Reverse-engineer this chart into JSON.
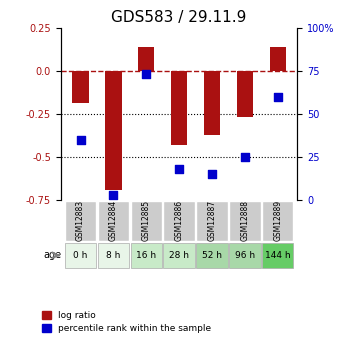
{
  "title": "GDS583 / 29.11.9",
  "samples": [
    "GSM12883",
    "GSM12884",
    "GSM12885",
    "GSM12886",
    "GSM12887",
    "GSM12888",
    "GSM12889"
  ],
  "ages": [
    "0 h",
    "8 h",
    "16 h",
    "28 h",
    "52 h",
    "96 h",
    "144 h"
  ],
  "log_ratios": [
    -0.19,
    -0.69,
    0.14,
    -0.43,
    -0.37,
    -0.27,
    0.14
  ],
  "percentile_ranks": [
    35,
    3,
    73,
    18,
    15,
    25,
    60
  ],
  "bar_color": "#aa1111",
  "dot_color": "#0000cc",
  "ylim_left": [
    -0.75,
    0.25
  ],
  "ylim_right": [
    0,
    100
  ],
  "yticks_left": [
    0.25,
    0.0,
    -0.25,
    -0.5,
    -0.75
  ],
  "yticks_right": [
    100,
    75,
    50,
    25,
    0
  ],
  "age_colors": [
    "#e8f5e8",
    "#e8f5e8",
    "#c8eac8",
    "#c8eac8",
    "#a8d8a8",
    "#a8d8a8",
    "#66cc66"
  ],
  "sample_bg_color": "#cccccc",
  "legend_red_label": "log ratio",
  "legend_blue_label": "percentile rank within the sample"
}
